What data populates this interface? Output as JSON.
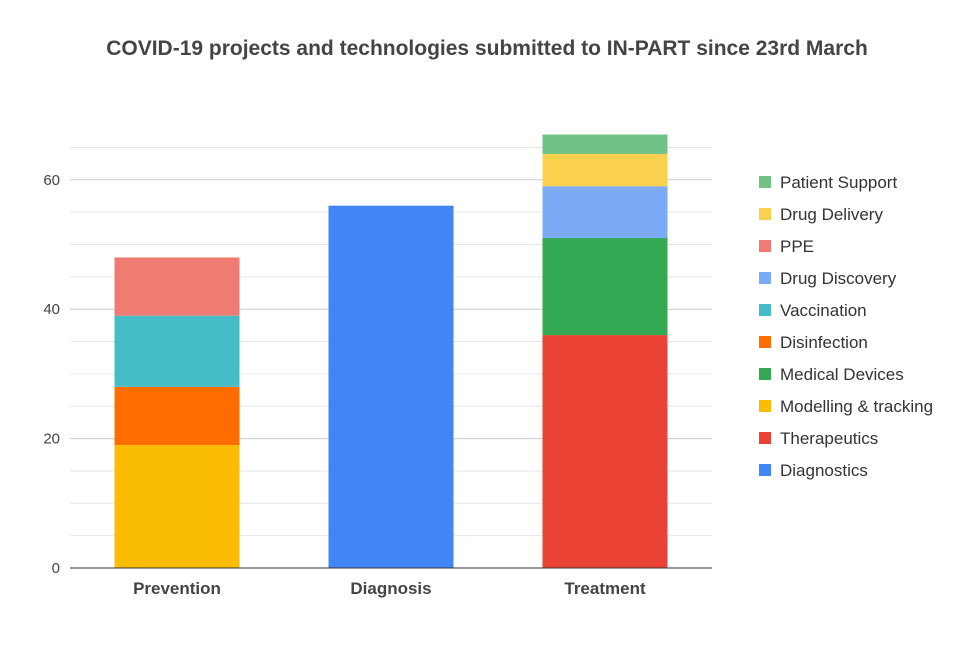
{
  "chart_data": {
    "type": "bar",
    "stacked": true,
    "title": "COVID-19 projects and technologies submitted to IN-PART since 23rd March",
    "xlabel": "",
    "ylabel": "",
    "categories": [
      "Prevention",
      "Diagnosis",
      "Treatment"
    ],
    "ylim": [
      0,
      67
    ],
    "yticks": [
      0,
      20,
      40,
      60
    ],
    "grid": true,
    "legend_position": "right",
    "series": [
      {
        "name": "Diagnostics",
        "color": "#4285F4",
        "values": [
          0,
          56,
          0
        ]
      },
      {
        "name": "Therapeutics",
        "color": "#EA4335",
        "values": [
          0,
          0,
          36
        ]
      },
      {
        "name": "Modelling & tracking",
        "color": "#FBBC04",
        "values": [
          19,
          0,
          0
        ]
      },
      {
        "name": "Medical Devices",
        "color": "#34A853",
        "values": [
          0,
          0,
          15
        ]
      },
      {
        "name": "Disinfection",
        "color": "#FF6D01",
        "values": [
          9,
          0,
          0
        ]
      },
      {
        "name": "Vaccination",
        "color": "#46BDC6",
        "values": [
          11,
          0,
          0
        ]
      },
      {
        "name": "Drug Discovery",
        "color": "#7BAAF7",
        "values": [
          0,
          0,
          8
        ]
      },
      {
        "name": "PPE",
        "color": "#F07B72",
        "values": [
          9,
          0,
          0
        ]
      },
      {
        "name": "Drug Delivery",
        "color": "#FCD04F",
        "values": [
          0,
          0,
          5
        ]
      },
      {
        "name": "Patient Support",
        "color": "#71C287",
        "values": [
          0,
          0,
          3
        ]
      }
    ]
  }
}
